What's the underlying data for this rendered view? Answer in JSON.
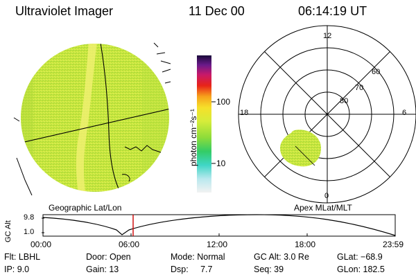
{
  "header": {
    "instrument": "Ultraviolet Imager",
    "date": "11 Dec 00",
    "time": "06:14:19 UT"
  },
  "colorbar": {
    "unit_label": "photon cm⁻²s⁻¹",
    "ticks": [
      "100",
      "10"
    ]
  },
  "geo_panel": {
    "label": "Geographic Lat/Lon"
  },
  "polar_plot": {
    "label": "Apex MLat/MLT",
    "mlt_labels": {
      "top": "12",
      "left": "18",
      "right": "6",
      "bottom": "0"
    },
    "mlat_labels": [
      "60",
      "70",
      "80"
    ]
  },
  "altitude_strip": {
    "ylabel": "GC Alt",
    "yticks": [
      "9.8",
      "1.0"
    ],
    "xticks": [
      "00:00",
      "06:00",
      "12:00",
      "18:00",
      "23:59"
    ],
    "current_time_marker": "06:14:19",
    "accent_color": "#cc0000"
  },
  "status": {
    "filter": "Flt: LBHL",
    "ip": "IP:  9.0",
    "door": "Door: Open",
    "gain": "Gain: 13",
    "mode": "Mode: Normal",
    "dsp": "Dsp:     7.7",
    "gc_alt": "GC Alt: 3.0 Re",
    "seq": "Seq: 39",
    "glat": "GLat: −68.9",
    "glon": "GLon: 182.5"
  },
  "colors": {
    "background": "#ffffff",
    "emission_main": "#c7e63a",
    "emission_bright": "#eef070",
    "grid": "#000000"
  }
}
